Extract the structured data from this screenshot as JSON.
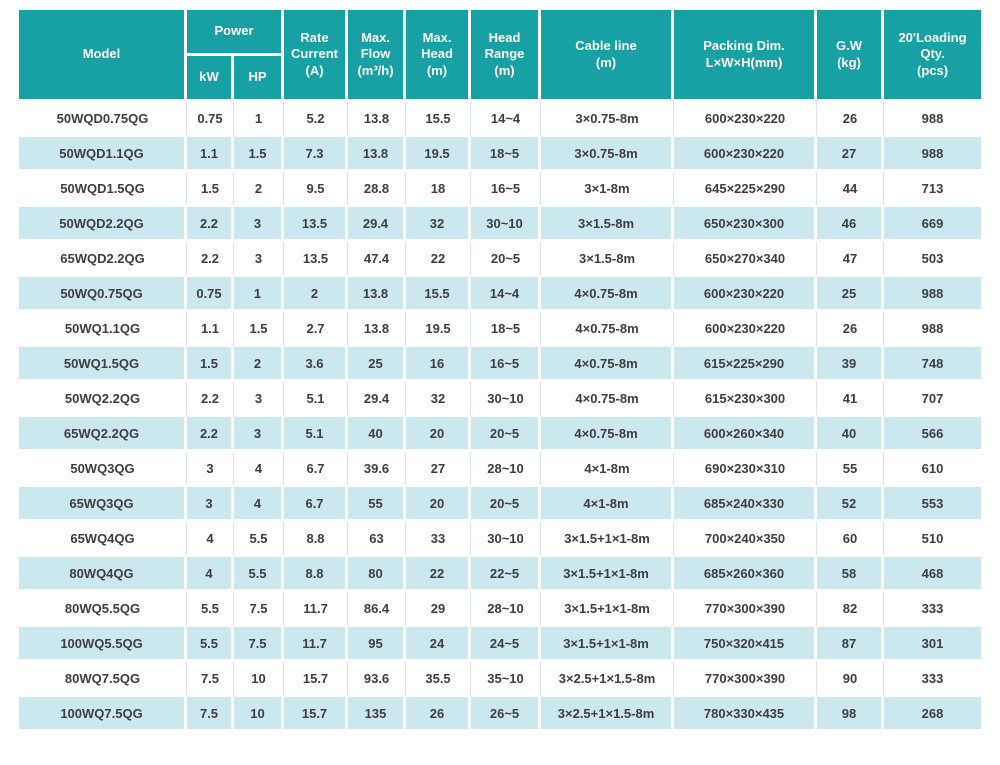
{
  "colors": {
    "header_bg": "#17a1a5",
    "header_text": "#ffffff",
    "row_bg": "#ffffff",
    "row_alt_bg": "#cbe8ee",
    "body_text": "#3d3d42",
    "divider": "#dbe4e6"
  },
  "table": {
    "header": {
      "model": "Model",
      "power": "Power",
      "kw": "kW",
      "hp": "HP",
      "rate_current": "Rate\nCurrent\n(A)",
      "max_flow": "Max.\nFlow\n(m³/h)",
      "max_head": "Max.\nHead\n(m)",
      "head_range": "Head\nRange\n(m)",
      "cable_line": "Cable line\n(m)",
      "packing_dim": "Packing Dim.\nL×W×H(mm)",
      "gw": "G.W\n(kg)",
      "loading_qty": "20'Loading\nQty.\n(pcs)"
    },
    "column_keys": [
      "model",
      "kw",
      "hp",
      "rate_current",
      "max_flow",
      "max_head",
      "head_range",
      "cable_line",
      "packing_dim",
      "gw",
      "loading_qty"
    ],
    "rows": [
      [
        "50WQD0.75QG",
        "0.75",
        "1",
        "5.2",
        "13.8",
        "15.5",
        "14~4",
        "3×0.75-8m",
        "600×230×220",
        "26",
        "988"
      ],
      [
        "50WQD1.1QG",
        "1.1",
        "1.5",
        "7.3",
        "13.8",
        "19.5",
        "18~5",
        "3×0.75-8m",
        "600×230×220",
        "27",
        "988"
      ],
      [
        "50WQD1.5QG",
        "1.5",
        "2",
        "9.5",
        "28.8",
        "18",
        "16~5",
        "3×1-8m",
        "645×225×290",
        "44",
        "713"
      ],
      [
        "50WQD2.2QG",
        "2.2",
        "3",
        "13.5",
        "29.4",
        "32",
        "30~10",
        "3×1.5-8m",
        "650×230×300",
        "46",
        "669"
      ],
      [
        "65WQD2.2QG",
        "2.2",
        "3",
        "13.5",
        "47.4",
        "22",
        "20~5",
        "3×1.5-8m",
        "650×270×340",
        "47",
        "503"
      ],
      [
        "50WQ0.75QG",
        "0.75",
        "1",
        "2",
        "13.8",
        "15.5",
        "14~4",
        "4×0.75-8m",
        "600×230×220",
        "25",
        "988"
      ],
      [
        "50WQ1.1QG",
        "1.1",
        "1.5",
        "2.7",
        "13.8",
        "19.5",
        "18~5",
        "4×0.75-8m",
        "600×230×220",
        "26",
        "988"
      ],
      [
        "50WQ1.5QG",
        "1.5",
        "2",
        "3.6",
        "25",
        "16",
        "16~5",
        "4×0.75-8m",
        "615×225×290",
        "39",
        "748"
      ],
      [
        "50WQ2.2QG",
        "2.2",
        "3",
        "5.1",
        "29.4",
        "32",
        "30~10",
        "4×0.75-8m",
        "615×230×300",
        "41",
        "707"
      ],
      [
        "65WQ2.2QG",
        "2.2",
        "3",
        "5.1",
        "40",
        "20",
        "20~5",
        "4×0.75-8m",
        "600×260×340",
        "40",
        "566"
      ],
      [
        "50WQ3QG",
        "3",
        "4",
        "6.7",
        "39.6",
        "27",
        "28~10",
        "4×1-8m",
        "690×230×310",
        "55",
        "610"
      ],
      [
        "65WQ3QG",
        "3",
        "4",
        "6.7",
        "55",
        "20",
        "20~5",
        "4×1-8m",
        "685×240×330",
        "52",
        "553"
      ],
      [
        "65WQ4QG",
        "4",
        "5.5",
        "8.8",
        "63",
        "33",
        "30~10",
        "3×1.5+1×1-8m",
        "700×240×350",
        "60",
        "510"
      ],
      [
        "80WQ4QG",
        "4",
        "5.5",
        "8.8",
        "80",
        "22",
        "22~5",
        "3×1.5+1×1-8m",
        "685×260×360",
        "58",
        "468"
      ],
      [
        "80WQ5.5QG",
        "5.5",
        "7.5",
        "11.7",
        "86.4",
        "29",
        "28~10",
        "3×1.5+1×1-8m",
        "770×300×390",
        "82",
        "333"
      ],
      [
        "100WQ5.5QG",
        "5.5",
        "7.5",
        "11.7",
        "95",
        "24",
        "24~5",
        "3×1.5+1×1-8m",
        "750×320×415",
        "87",
        "301"
      ],
      [
        "80WQ7.5QG",
        "7.5",
        "10",
        "15.7",
        "93.6",
        "35.5",
        "35~10",
        "3×2.5+1×1.5-8m",
        "770×300×390",
        "90",
        "333"
      ],
      [
        "100WQ7.5QG",
        "7.5",
        "10",
        "15.7",
        "135",
        "26",
        "26~5",
        "3×2.5+1×1.5-8m",
        "780×330×435",
        "98",
        "268"
      ]
    ]
  }
}
